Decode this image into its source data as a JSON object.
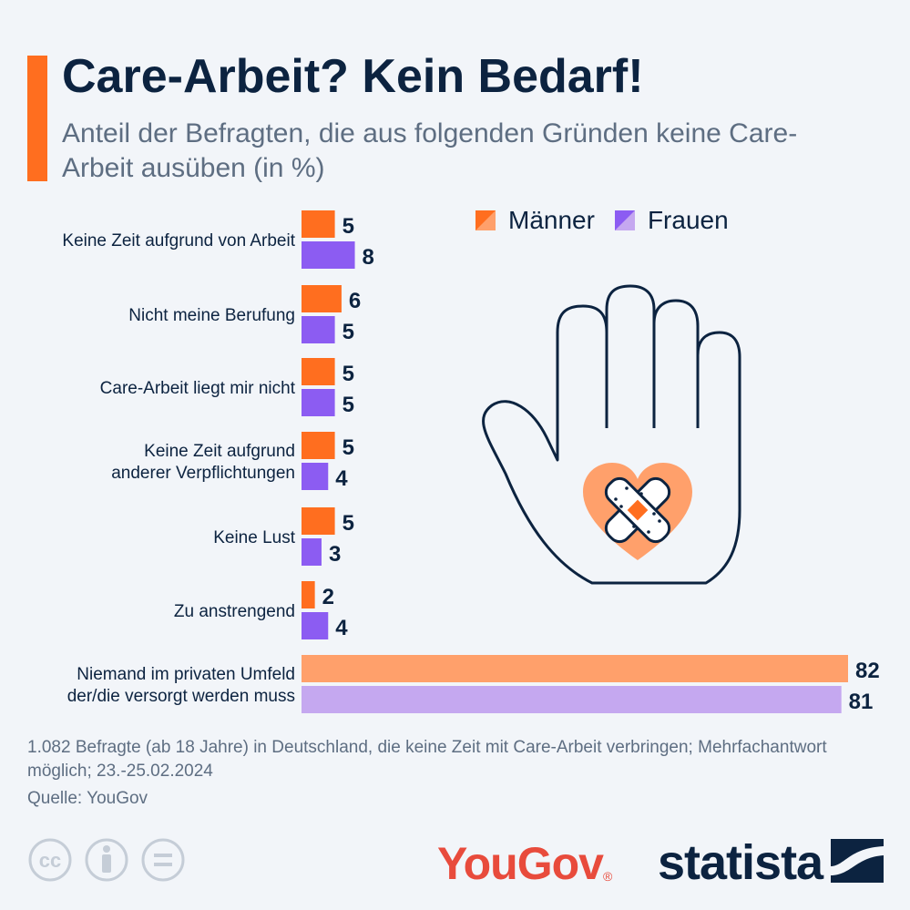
{
  "title": "Care-Arbeit? Kein Bedarf!",
  "subtitle": "Anteil der Befragten, die aus folgenden Gründen keine Care-Arbeit ausüben (in %)",
  "legend": {
    "men": "Männer",
    "women": "Frauen"
  },
  "colors": {
    "men": "#ff6e1f",
    "women": "#8c5cf2",
    "men_highlight": "#ffa06b",
    "women_highlight": "#c5a8f0",
    "accent": "#ff6e1f",
    "dark": "#0c2340"
  },
  "chart_data": {
    "type": "bar",
    "orientation": "horizontal",
    "categories": [
      [
        "Keine Zeit aufgrund von Arbeit"
      ],
      [
        "Nicht meine Berufung"
      ],
      [
        "Care-Arbeit liegt mir nicht"
      ],
      [
        "Keine Zeit aufgrund",
        "anderer Verpflichtungen"
      ],
      [
        "Keine Lust"
      ],
      [
        "Zu anstrengend"
      ],
      [
        "Niemand im privaten Umfeld",
        "der/die versorgt werden muss"
      ]
    ],
    "series": [
      {
        "name": "Männer",
        "values": [
          5,
          6,
          5,
          5,
          5,
          2,
          82
        ]
      },
      {
        "name": "Frauen",
        "values": [
          8,
          5,
          5,
          4,
          3,
          4,
          81
        ]
      }
    ],
    "xlim": [
      0,
      82
    ],
    "legend_position": "top-right"
  },
  "footnote": "1.082 Befragte (ab 18 Jahre) in Deutschland, die keine Zeit mit Care-Arbeit verbringen; Mehrfachantwort möglich; 23.-25.02.2024",
  "source": "Quelle: YouGov",
  "logos": {
    "yougov": "YouGov",
    "statista": "statista"
  },
  "icons": [
    "orange-bar",
    "hand-icon",
    "heart-icon",
    "bandage-icon",
    "cc-icon",
    "by-icon",
    "nd-icon",
    "statista-mark-icon"
  ]
}
